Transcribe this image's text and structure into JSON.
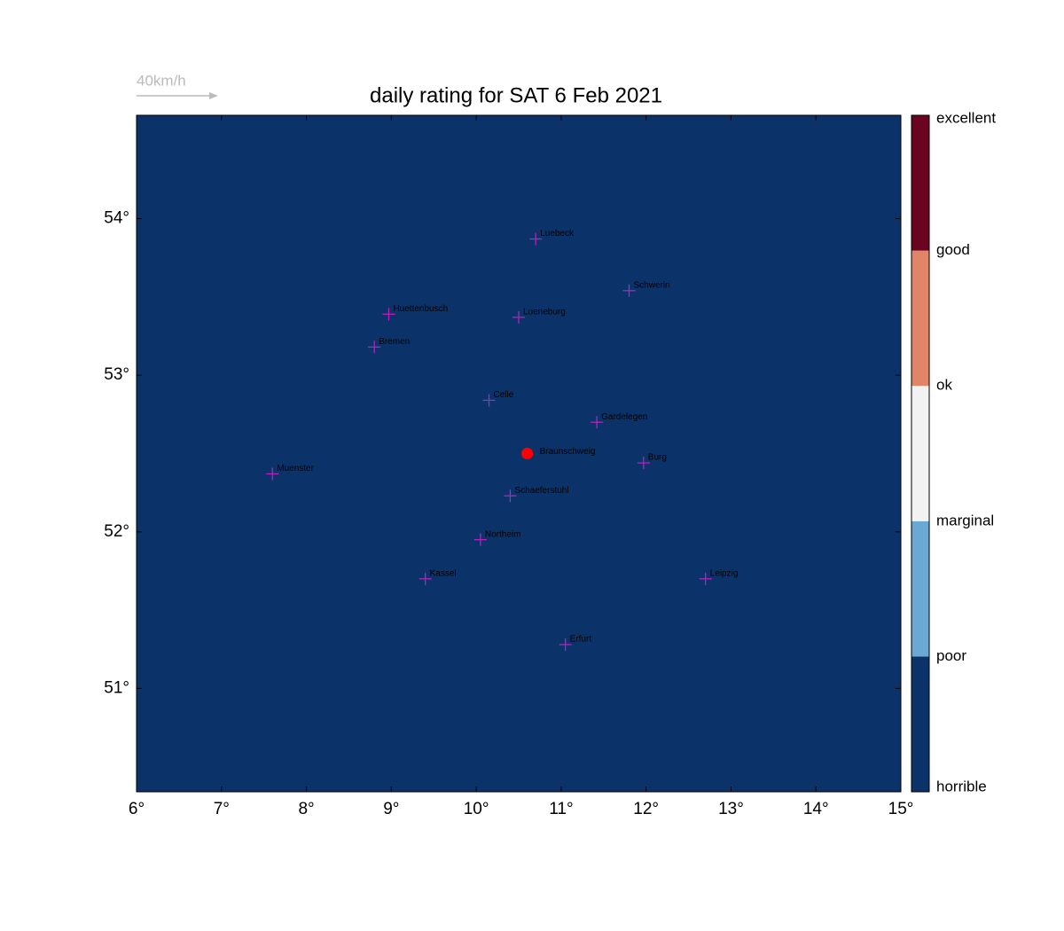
{
  "chart_data": {
    "type": "map",
    "title": "daily rating for SAT 6 Feb 2021",
    "wind_scale_label": "40km/h",
    "background": "#0b3369",
    "xlim": [
      6,
      15
    ],
    "ylim": [
      50.34,
      54.66
    ],
    "xticks": [
      {
        "value": 6,
        "label": "6°"
      },
      {
        "value": 7,
        "label": "7°"
      },
      {
        "value": 8,
        "label": "8°"
      },
      {
        "value": 9,
        "label": "9°"
      },
      {
        "value": 10,
        "label": "10°"
      },
      {
        "value": 11,
        "label": "11°"
      },
      {
        "value": 12,
        "label": "12°"
      },
      {
        "value": 13,
        "label": "13°"
      },
      {
        "value": 14,
        "label": "14°"
      },
      {
        "value": 15,
        "label": "15°"
      }
    ],
    "yticks": [
      {
        "value": 51,
        "label": "51°"
      },
      {
        "value": 52,
        "label": "52°"
      },
      {
        "value": 53,
        "label": "53°"
      },
      {
        "value": 54,
        "label": "54°"
      }
    ],
    "colorbar": {
      "labels": [
        "horrible",
        "poor",
        "marginal",
        "ok",
        "good",
        "excellent"
      ],
      "colors": [
        "#0b3369",
        "#6aa9d2",
        "#f2f2f2",
        "#e28468",
        "#6a0420"
      ]
    },
    "cities": [
      {
        "name": "Luebeck",
        "lon": 10.7,
        "lat": 53.87
      },
      {
        "name": "Schwerin",
        "lon": 11.8,
        "lat": 53.54
      },
      {
        "name": "Huettenbusch",
        "lon": 8.97,
        "lat": 53.39
      },
      {
        "name": "Lueneburg",
        "lon": 10.5,
        "lat": 53.37
      },
      {
        "name": "Bremen",
        "lon": 8.8,
        "lat": 53.18
      },
      {
        "name": "Celle",
        "lon": 10.15,
        "lat": 52.84
      },
      {
        "name": "Gardelegen",
        "lon": 11.42,
        "lat": 52.7
      },
      {
        "name": "Burg",
        "lon": 11.97,
        "lat": 52.44
      },
      {
        "name": "Muenster",
        "lon": 7.6,
        "lat": 52.37
      },
      {
        "name": "Schaeferstuhl",
        "lon": 10.4,
        "lat": 52.23
      },
      {
        "name": "Northeim",
        "lon": 10.05,
        "lat": 51.95
      },
      {
        "name": "Kassel",
        "lon": 9.4,
        "lat": 51.7
      },
      {
        "name": "Leipzig",
        "lon": 12.7,
        "lat": 51.7
      },
      {
        "name": "Erfurt",
        "lon": 11.05,
        "lat": 51.28
      }
    ],
    "site": {
      "name": "Braunschweig",
      "lon": 10.6,
      "lat": 52.5,
      "color": "#ff0000"
    },
    "city_marker_color": "#c020c0"
  }
}
